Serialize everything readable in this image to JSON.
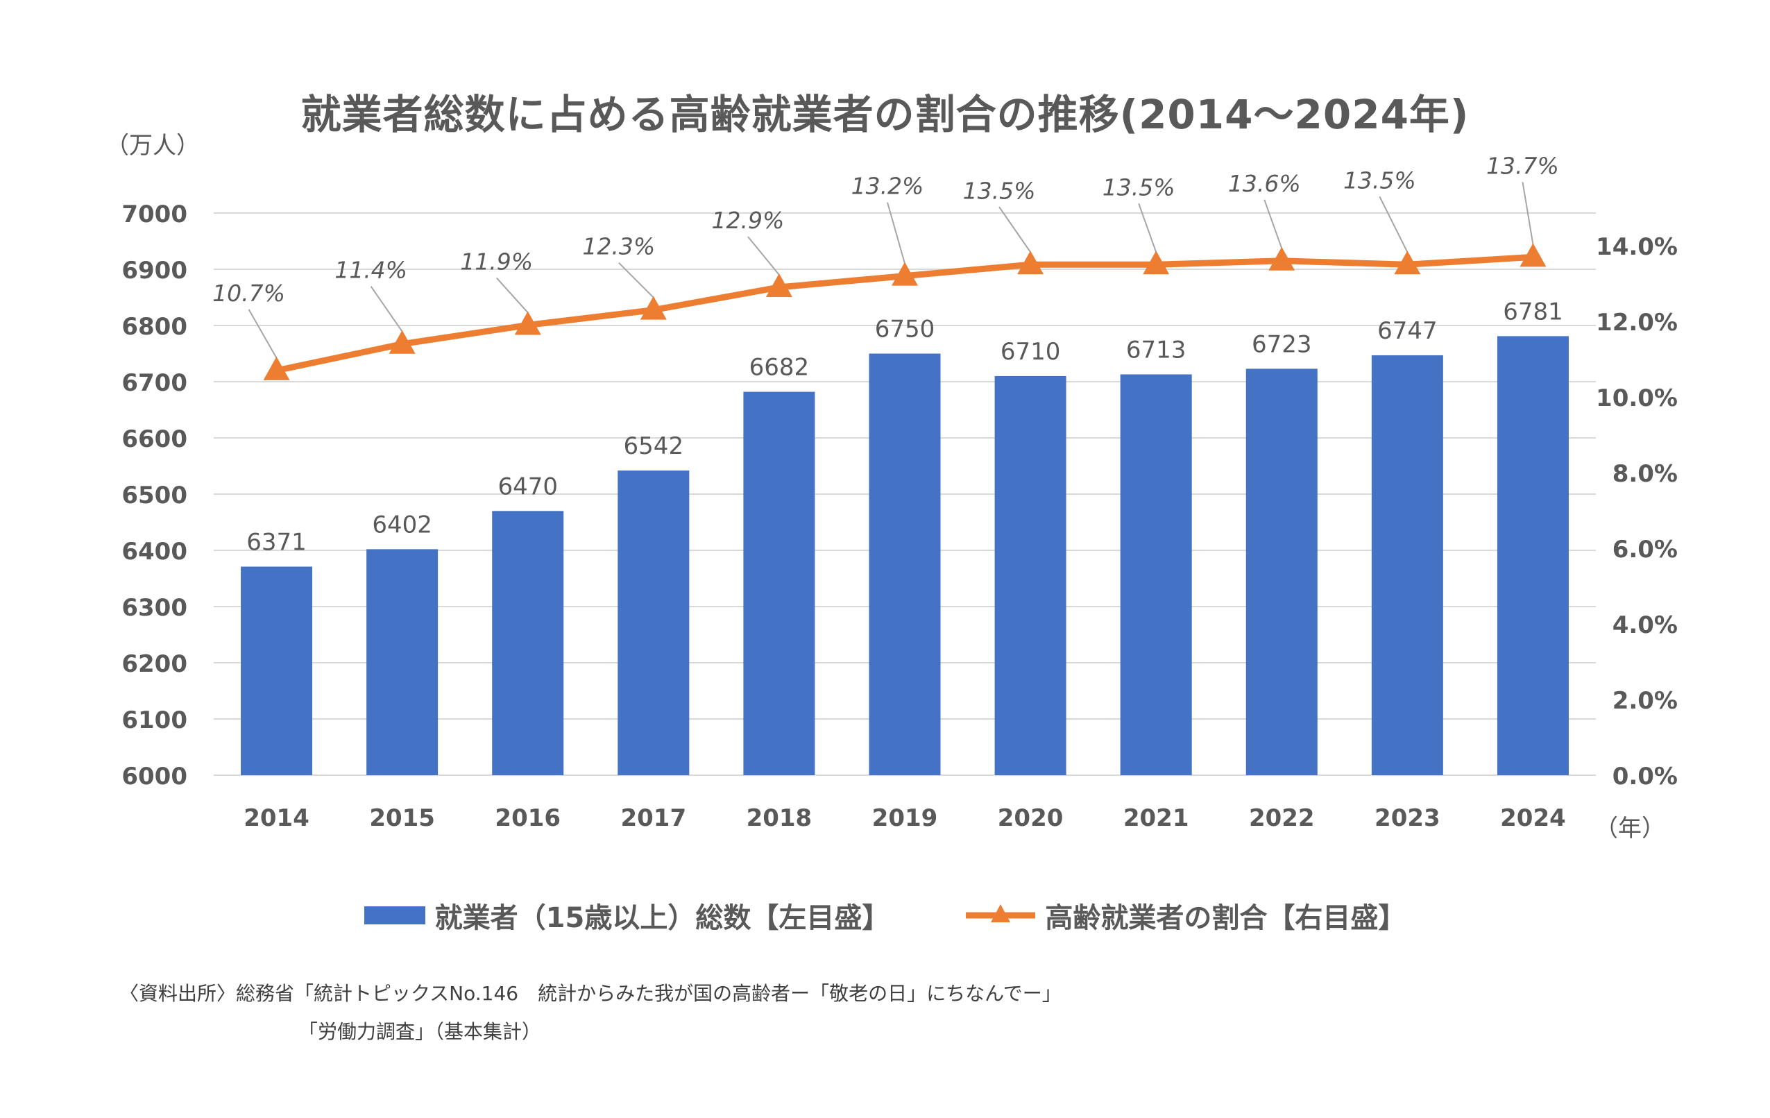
{
  "title": "就業者総数に占める高齢就業者の割合の推移(2014～2024年)",
  "unit_left": "（万人）",
  "unit_right": "（年）",
  "legend": {
    "bar_label": "就業者（15歳以上）総数【左目盛】",
    "line_label": "高齢就業者の割合【右目盛】"
  },
  "source": {
    "line1": "〈資料出所〉総務省「統計トピックスNo.146　統計からみた我が国の高齢者ー「敬老の日」にちなんでー」",
    "line2": "「労働力調査」（基本集計）"
  },
  "colors": {
    "bar": "#4472C4",
    "line": "#ED7D31",
    "grid": "#D9D9D9",
    "text": "#595959"
  },
  "chart_data": {
    "type": "bar",
    "categories": [
      "2014",
      "2015",
      "2016",
      "2017",
      "2018",
      "2019",
      "2020",
      "2021",
      "2022",
      "2023",
      "2024"
    ],
    "series": [
      {
        "name": "就業者（15歳以上）総数【左目盛】",
        "type": "bar",
        "axis": "left",
        "values": [
          6371,
          6402,
          6470,
          6542,
          6682,
          6750,
          6710,
          6713,
          6723,
          6747,
          6781
        ],
        "labels": [
          "6371",
          "6402",
          "6470",
          "6542",
          "6682",
          "6750",
          "6710",
          "6713",
          "6723",
          "6747",
          "6781"
        ]
      },
      {
        "name": "高齢就業者の割合【右目盛】",
        "type": "line",
        "axis": "right",
        "values": [
          10.7,
          11.4,
          11.9,
          12.3,
          12.9,
          13.2,
          13.5,
          13.5,
          13.6,
          13.5,
          13.7
        ],
        "labels": [
          "10.7%",
          "11.4%",
          "11.9%",
          "12.3%",
          "12.9%",
          "13.2%",
          "13.5%",
          "13.5%",
          "13.6%",
          "13.5%",
          "13.7%"
        ]
      }
    ],
    "y_left": {
      "range": [
        6000,
        7000
      ],
      "ticks": [
        6000,
        6100,
        6200,
        6300,
        6400,
        6500,
        6600,
        6700,
        6800,
        6900,
        7000
      ],
      "tick_labels": [
        "6000",
        "6100",
        "6200",
        "6300",
        "6400",
        "6500",
        "6600",
        "6700",
        "6800",
        "6900",
        "7000"
      ]
    },
    "y_right": {
      "range": [
        0,
        15
      ],
      "ticks": [
        0,
        2,
        4,
        6,
        8,
        10,
        12,
        14
      ],
      "tick_labels": [
        "0.0%",
        "2.0%",
        "4.0%",
        "6.0%",
        "8.0%",
        "10.0%",
        "12.0%",
        "14.0%"
      ]
    },
    "grid": true,
    "legend_position": "bottom"
  }
}
